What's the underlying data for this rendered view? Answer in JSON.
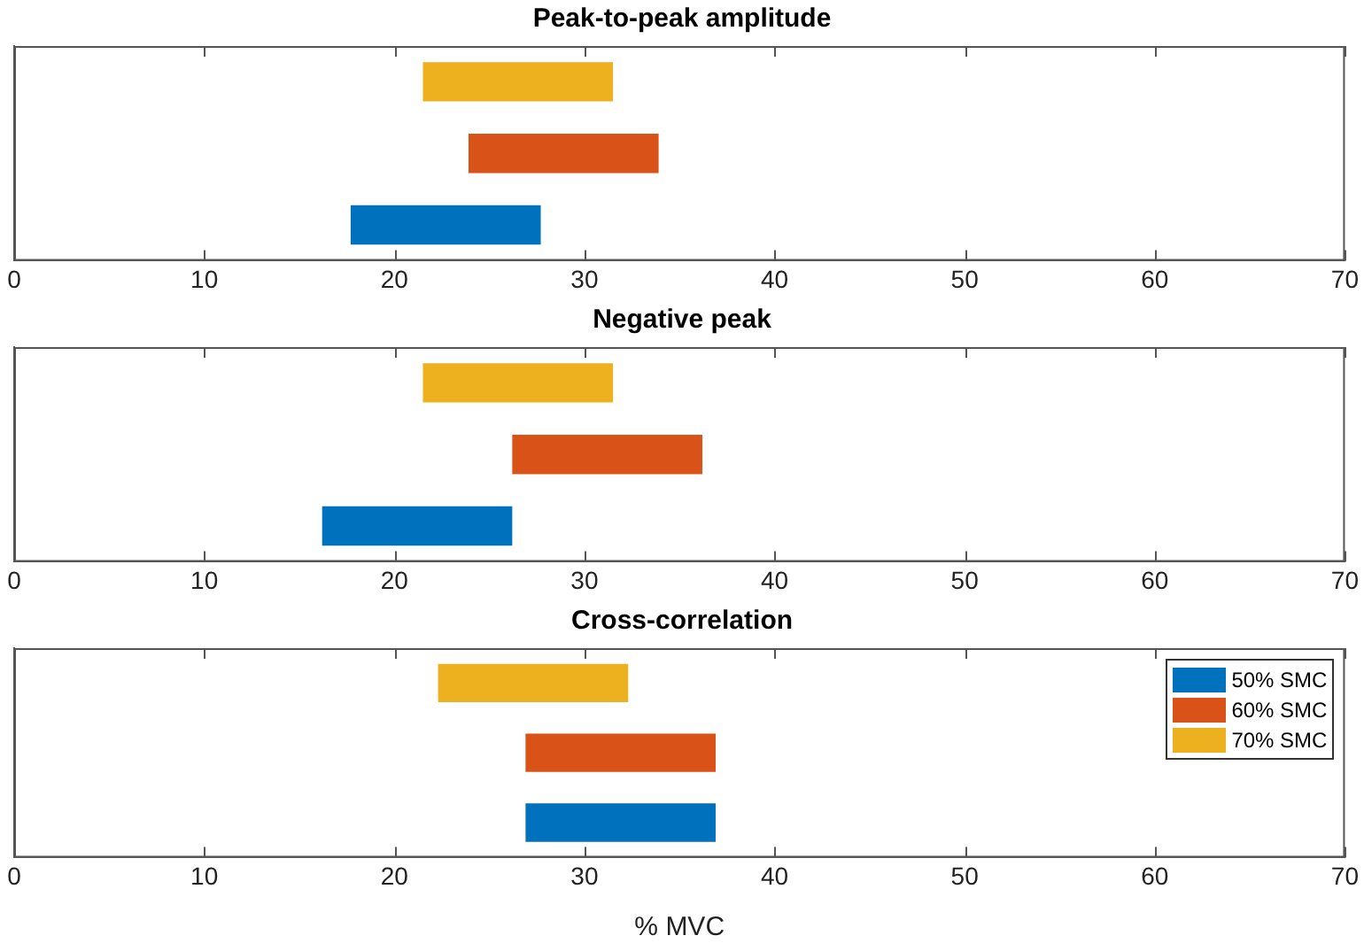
{
  "chart_data": [
    {
      "type": "bar",
      "title": "Peak-to-peak amplitude",
      "orientation": "horizontal",
      "categories": [
        null,
        null,
        null
      ],
      "series": [
        {
          "color": "#0072bd",
          "values": [
            null,
            null,
            10
          ],
          "base": [
            null,
            null,
            17.7
          ]
        },
        {
          "color": "#d95319",
          "values": [
            null,
            10,
            null
          ],
          "base": [
            null,
            23.9,
            null
          ]
        },
        {
          "color": "#edb120",
          "values": [
            10,
            null,
            null
          ],
          "base": [
            21.5,
            null,
            null
          ]
        }
      ],
      "xlim": [
        0,
        70
      ],
      "xticks": [
        0,
        10,
        20,
        30,
        40,
        50,
        60,
        70
      ],
      "tick_labels": "x",
      "legend": false,
      "grid": false
    },
    {
      "type": "bar",
      "title": "Negative peak",
      "orientation": "horizontal",
      "categories": [
        null,
        null,
        null
      ],
      "series": [
        {
          "color": "#0072bd",
          "values": [
            null,
            null,
            10
          ],
          "base": [
            null,
            null,
            16.2
          ]
        },
        {
          "color": "#d95319",
          "values": [
            null,
            10,
            null
          ],
          "base": [
            null,
            26.2,
            null
          ]
        },
        {
          "color": "#edb120",
          "values": [
            10,
            null,
            null
          ],
          "base": [
            21.5,
            null,
            null
          ]
        }
      ],
      "xlim": [
        0,
        70
      ],
      "xticks": [
        0,
        10,
        20,
        30,
        40,
        50,
        60,
        70
      ],
      "tick_labels": "x",
      "legend": false,
      "grid": false
    },
    {
      "type": "bar",
      "title": "Cross-correlation",
      "xlabel": "% MVC",
      "orientation": "horizontal",
      "categories": [
        null,
        null,
        null
      ],
      "series": [
        {
          "name": "50% SMC",
          "color": "#0072bd",
          "values": [
            null,
            null,
            10
          ],
          "base": [
            null,
            null,
            26.9
          ]
        },
        {
          "name": "60% SMC",
          "color": "#d95319",
          "values": [
            null,
            10,
            null
          ],
          "base": [
            null,
            26.9,
            null
          ]
        },
        {
          "name": "70% SMC",
          "color": "#edb120",
          "values": [
            10,
            null,
            null
          ],
          "base": [
            22.3,
            null,
            null
          ]
        }
      ],
      "xlim": [
        0,
        70
      ],
      "xticks": [
        0,
        10,
        20,
        30,
        40,
        50,
        60,
        70
      ],
      "tick_labels": "x",
      "legend": "top right",
      "grid": false
    }
  ]
}
